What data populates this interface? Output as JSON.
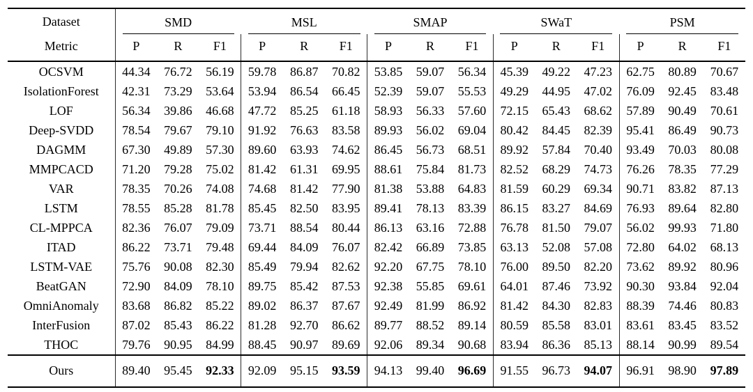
{
  "page": {
    "background": "#ffffff",
    "text_color": "#000000",
    "rule_color": "#000000"
  },
  "table": {
    "corner": {
      "dataset": "Dataset",
      "metric": "Metric"
    },
    "datasets": [
      "SMD",
      "MSL",
      "SMAP",
      "SWaT",
      "PSM"
    ],
    "metrics": [
      "P",
      "R",
      "F1"
    ],
    "rows": [
      {
        "method": "OCSVM",
        "values": [
          "44.34",
          "76.72",
          "56.19",
          "59.78",
          "86.87",
          "70.82",
          "53.85",
          "59.07",
          "56.34",
          "45.39",
          "49.22",
          "47.23",
          "62.75",
          "80.89",
          "70.67"
        ]
      },
      {
        "method": "IsolationForest",
        "values": [
          "42.31",
          "73.29",
          "53.64",
          "53.94",
          "86.54",
          "66.45",
          "52.39",
          "59.07",
          "55.53",
          "49.29",
          "44.95",
          "47.02",
          "76.09",
          "92.45",
          "83.48"
        ]
      },
      {
        "method": "LOF",
        "values": [
          "56.34",
          "39.86",
          "46.68",
          "47.72",
          "85.25",
          "61.18",
          "58.93",
          "56.33",
          "57.60",
          "72.15",
          "65.43",
          "68.62",
          "57.89",
          "90.49",
          "70.61"
        ]
      },
      {
        "method": "Deep-SVDD",
        "values": [
          "78.54",
          "79.67",
          "79.10",
          "91.92",
          "76.63",
          "83.58",
          "89.93",
          "56.02",
          "69.04",
          "80.42",
          "84.45",
          "82.39",
          "95.41",
          "86.49",
          "90.73"
        ]
      },
      {
        "method": "DAGMM",
        "values": [
          "67.30",
          "49.89",
          "57.30",
          "89.60",
          "63.93",
          "74.62",
          "86.45",
          "56.73",
          "68.51",
          "89.92",
          "57.84",
          "70.40",
          "93.49",
          "70.03",
          "80.08"
        ]
      },
      {
        "method": "MMPCACD",
        "values": [
          "71.20",
          "79.28",
          "75.02",
          "81.42",
          "61.31",
          "69.95",
          "88.61",
          "75.84",
          "81.73",
          "82.52",
          "68.29",
          "74.73",
          "76.26",
          "78.35",
          "77.29"
        ]
      },
      {
        "method": "VAR",
        "values": [
          "78.35",
          "70.26",
          "74.08",
          "74.68",
          "81.42",
          "77.90",
          "81.38",
          "53.88",
          "64.83",
          "81.59",
          "60.29",
          "69.34",
          "90.71",
          "83.82",
          "87.13"
        ]
      },
      {
        "method": "LSTM",
        "values": [
          "78.55",
          "85.28",
          "81.78",
          "85.45",
          "82.50",
          "83.95",
          "89.41",
          "78.13",
          "83.39",
          "86.15",
          "83.27",
          "84.69",
          "76.93",
          "89.64",
          "82.80"
        ]
      },
      {
        "method": "CL-MPPCA",
        "values": [
          "82.36",
          "76.07",
          "79.09",
          "73.71",
          "88.54",
          "80.44",
          "86.13",
          "63.16",
          "72.88",
          "76.78",
          "81.50",
          "79.07",
          "56.02",
          "99.93",
          "71.80"
        ]
      },
      {
        "method": "ITAD",
        "values": [
          "86.22",
          "73.71",
          "79.48",
          "69.44",
          "84.09",
          "76.07",
          "82.42",
          "66.89",
          "73.85",
          "63.13",
          "52.08",
          "57.08",
          "72.80",
          "64.02",
          "68.13"
        ]
      },
      {
        "method": "LSTM-VAE",
        "values": [
          "75.76",
          "90.08",
          "82.30",
          "85.49",
          "79.94",
          "82.62",
          "92.20",
          "67.75",
          "78.10",
          "76.00",
          "89.50",
          "82.20",
          "73.62",
          "89.92",
          "80.96"
        ]
      },
      {
        "method": "BeatGAN",
        "values": [
          "72.90",
          "84.09",
          "78.10",
          "89.75",
          "85.42",
          "87.53",
          "92.38",
          "55.85",
          "69.61",
          "64.01",
          "87.46",
          "73.92",
          "90.30",
          "93.84",
          "92.04"
        ]
      },
      {
        "method": "OmniAnomaly",
        "values": [
          "83.68",
          "86.82",
          "85.22",
          "89.02",
          "86.37",
          "87.67",
          "92.49",
          "81.99",
          "86.92",
          "81.42",
          "84.30",
          "82.83",
          "88.39",
          "74.46",
          "80.83"
        ]
      },
      {
        "method": "InterFusion",
        "values": [
          "87.02",
          "85.43",
          "86.22",
          "81.28",
          "92.70",
          "86.62",
          "89.77",
          "88.52",
          "89.14",
          "80.59",
          "85.58",
          "83.01",
          "83.61",
          "83.45",
          "83.52"
        ]
      },
      {
        "method": "THOC",
        "values": [
          "79.76",
          "90.95",
          "84.99",
          "88.45",
          "90.97",
          "89.69",
          "92.06",
          "89.34",
          "90.68",
          "83.94",
          "86.36",
          "85.13",
          "88.14",
          "90.99",
          "89.54"
        ]
      }
    ],
    "ours": {
      "method": "Ours",
      "values": [
        "89.40",
        "95.45",
        "92.33",
        "92.09",
        "95.15",
        "93.59",
        "94.13",
        "99.40",
        "96.69",
        "91.55",
        "96.73",
        "94.07",
        "96.91",
        "98.90",
        "97.89"
      ],
      "bold": [
        2,
        5,
        8,
        11,
        14
      ]
    }
  }
}
